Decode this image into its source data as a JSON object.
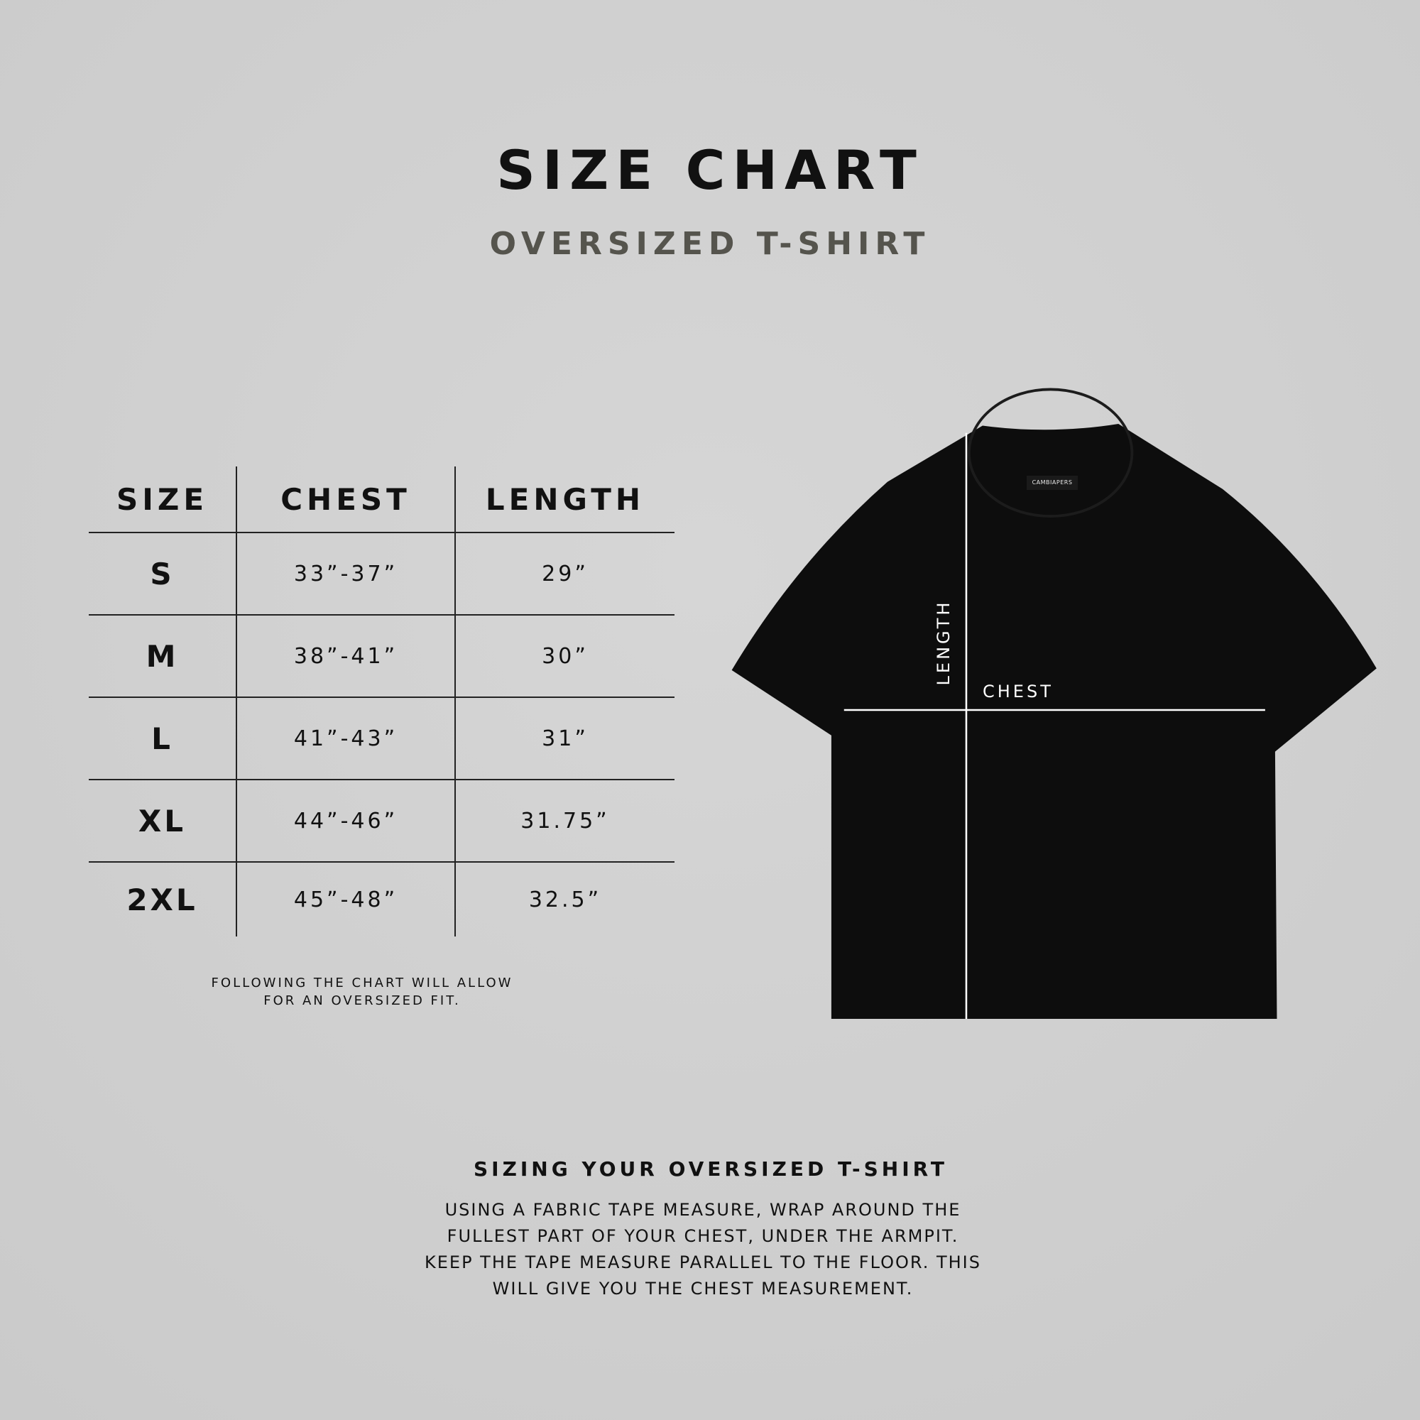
{
  "title": "SIZE CHART",
  "subtitle": "OVERSIZED T-SHIRT",
  "table": {
    "headers": [
      "SIZE",
      "CHEST",
      "LENGTH"
    ],
    "rows": [
      {
        "size": "S",
        "chest": "33”-37”",
        "length": "29”"
      },
      {
        "size": "M",
        "chest": "38”-41”",
        "length": "30”"
      },
      {
        "size": "L",
        "chest": "41”-43”",
        "length": "31”"
      },
      {
        "size": "XL",
        "chest": "44”-46”",
        "length": "31.75”"
      },
      {
        "size": "2XL",
        "chest": "45”-48”",
        "length": "32.5”"
      }
    ]
  },
  "note": [
    "FOLLOWING THE CHART WILL ALLOW",
    "FOR AN OVERSIZED FIT."
  ],
  "diagram": {
    "length_label": "LENGTH",
    "chest_label": "CHEST",
    "shirt_color": "#0d0d0d",
    "brand_tag": "CAMBIAPERS"
  },
  "guide": {
    "heading": "SIZING YOUR OVERSIZED T-SHIRT",
    "lines": [
      "USING A FABRIC TAPE MEASURE, WRAP AROUND THE",
      "FULLEST PART OF YOUR CHEST, UNDER THE ARMPIT.",
      "KEEP THE TAPE MEASURE PARALLEL TO THE FLOOR. THIS",
      "WILL GIVE YOU THE CHEST MEASUREMENT."
    ]
  }
}
